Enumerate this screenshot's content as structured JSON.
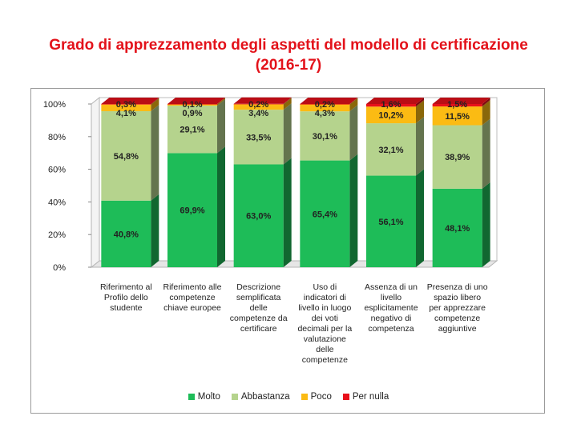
{
  "chart_data": {
    "type": "bar",
    "stacked": true,
    "percent": true,
    "title": "Grado di apprezzamento degli aspetti del modello di certificazione (2016-17)",
    "title_lines": [
      "Grado di apprezzamento degli aspetti del modello di certificazione",
      "(2016-17)"
    ],
    "ylim": [
      0,
      100
    ],
    "yticks": [
      "0%",
      "20%",
      "40%",
      "60%",
      "80%",
      "100%"
    ],
    "categories": [
      "Riferimento al Profilo dello studente",
      "Riferimento alle competenze chiave europee",
      "Descrizione semplificata delle competenze da certificare",
      "Uso di indicatori di livello in luogo dei voti decimali per la valutazione delle competenze",
      "Assenza di un livello esplicitamente negativo di competenza",
      "Presenza di uno spazio libero per apprezzare competenze aggiuntive"
    ],
    "category_lines": [
      [
        "Riferimento al",
        "Profilo dello",
        "studente"
      ],
      [
        "Riferimento alle",
        "competenze",
        "chiave europee"
      ],
      [
        "Descrizione",
        "semplificata",
        "delle",
        "competenze da",
        "certificare"
      ],
      [
        "Uso di",
        "indicatori di",
        "livello in luogo",
        "dei voti",
        "decimali per la",
        "valutazione",
        "delle",
        "competenze"
      ],
      [
        "Assenza di un",
        "livello",
        "esplicitamente",
        "negativo di",
        "competenza"
      ],
      [
        "Presenza di uno",
        "spazio libero",
        "per apprezzare",
        "competenze",
        "aggiuntive"
      ]
    ],
    "series": [
      {
        "name": "Molto",
        "color": "#1ebc58",
        "values": [
          40.8,
          69.9,
          63.0,
          65.4,
          56.1,
          48.1
        ],
        "labels": [
          "40,8%",
          "69,9%",
          "63,0%",
          "65,4%",
          "56,1%",
          "48,1%"
        ]
      },
      {
        "name": "Abbastanza",
        "color": "#b5d38d",
        "values": [
          54.8,
          29.1,
          33.5,
          30.1,
          32.1,
          38.9
        ],
        "labels": [
          "54,8%",
          "29,1%",
          "33,5%",
          "30,1%",
          "32,1%",
          "38,9%"
        ]
      },
      {
        "name": "Poco",
        "color": "#fbbb13",
        "values": [
          4.1,
          0.9,
          3.4,
          4.3,
          10.2,
          11.5
        ],
        "labels": [
          "4,1%",
          "0,9%",
          "3,4%",
          "4,3%",
          "10,2%",
          "11,5%"
        ]
      },
      {
        "name": "Per nulla",
        "color": "#e8101a",
        "values": [
          0.3,
          0.1,
          0.2,
          0.2,
          1.6,
          1.5
        ],
        "labels": [
          "0,3%",
          "0,1%",
          "0,2%",
          "0,2%",
          "1,6%",
          "1,5%"
        ]
      }
    ],
    "legend_position": "bottom"
  }
}
